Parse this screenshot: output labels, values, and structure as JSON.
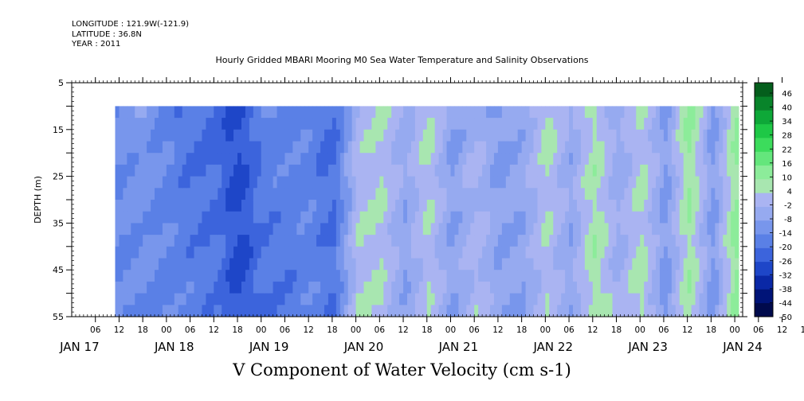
{
  "header": {
    "longitude": "LONGITUDE : 121.9W(-121.9)",
    "latitude": "LATITUDE : 36.8N",
    "year": "YEAR : 2011"
  },
  "colors": {
    "background": "#ffffff",
    "axis": "#000000",
    "palette": [
      "#000a4c",
      "#001478",
      "#0a28a6",
      "#1e46c8",
      "#3c64dc",
      "#5a80e6",
      "#7896ec",
      "#96aaf0",
      "#aab4f2",
      "#a8e6b0",
      "#8cec9a",
      "#64e67c",
      "#3cdc5c",
      "#1ec846",
      "#0ea838",
      "#08842a",
      "#045e1c"
    ]
  },
  "chart_data": {
    "type": "heatmap",
    "title": "Hourly Gridded MBARI Mooring M0 Sea Water Temperature and Salinity Observations",
    "subtitle": "V Component of Water Velocity (cm s-1)",
    "ylabel": "DEPTH (m)",
    "xlabel": "",
    "y_ticks": [
      5,
      15,
      25,
      35,
      45,
      55
    ],
    "ylim": [
      5,
      55
    ],
    "y_inverted": true,
    "data_depth_range": [
      10,
      55
    ],
    "x_hour_ticks": [
      "06",
      "12",
      "18",
      "00",
      "06",
      "12",
      "18",
      "00",
      "06",
      "12",
      "18",
      "00",
      "06",
      "12",
      "18",
      "00",
      "06",
      "12",
      "18",
      "00",
      "06",
      "12",
      "18",
      "00",
      "06",
      "12",
      "18",
      "00",
      "06",
      "12",
      "18",
      "00"
    ],
    "x_day_labels": [
      "JAN 17",
      "JAN 18",
      "JAN 19",
      "JAN 20",
      "JAN 21",
      "JAN 22",
      "JAN 23",
      "JAN 24"
    ],
    "xlim": [
      "2011-01-17T00:00",
      "2011-01-24T02:00"
    ],
    "data_time_range": [
      "2011-01-17T11:00",
      "2011-01-24T01:00"
    ],
    "colorbar": {
      "labels": [
        "46",
        "40",
        "34",
        "28",
        "22",
        "16",
        "10",
        "4",
        "-2",
        "-8",
        "-14",
        "-20",
        "-26",
        "-32",
        "-38",
        "-44",
        "-50"
      ],
      "range": [
        -50,
        52
      ]
    },
    "column_profile_cm_s": [
      {
        "time": "2011-01-17T11:00",
        "value": -14
      },
      {
        "time": "2011-01-17T18:00",
        "value": -12
      },
      {
        "time": "2011-01-18T00:00",
        "value": -16
      },
      {
        "time": "2011-01-18T12:00",
        "value": -20
      },
      {
        "time": "2011-01-18T18:00",
        "value": -28
      },
      {
        "time": "2011-01-19T00:00",
        "value": -18
      },
      {
        "time": "2011-01-19T12:00",
        "value": -16
      },
      {
        "time": "2011-01-19T18:00",
        "value": -20
      },
      {
        "time": "2011-01-20T00:00",
        "value": 2
      },
      {
        "time": "2011-01-20T06:00",
        "value": 4
      },
      {
        "time": "2011-01-20T12:00",
        "value": -6
      },
      {
        "time": "2011-01-20T18:00",
        "value": 4
      },
      {
        "time": "2011-01-21T00:00",
        "value": -8
      },
      {
        "time": "2011-01-21T06:00",
        "value": 0
      },
      {
        "time": "2011-01-21T12:00",
        "value": -8
      },
      {
        "time": "2011-01-21T18:00",
        "value": -6
      },
      {
        "time": "2011-01-22T00:00",
        "value": 4
      },
      {
        "time": "2011-01-22T06:00",
        "value": -6
      },
      {
        "time": "2011-01-22T12:00",
        "value": 8
      },
      {
        "time": "2011-01-22T18:00",
        "value": -4
      },
      {
        "time": "2011-01-23T00:00",
        "value": 6
      },
      {
        "time": "2011-01-23T06:00",
        "value": -10
      },
      {
        "time": "2011-01-23T12:00",
        "value": 10
      },
      {
        "time": "2011-01-23T18:00",
        "value": -10
      },
      {
        "time": "2011-01-24T00:00",
        "value": 12
      }
    ]
  }
}
